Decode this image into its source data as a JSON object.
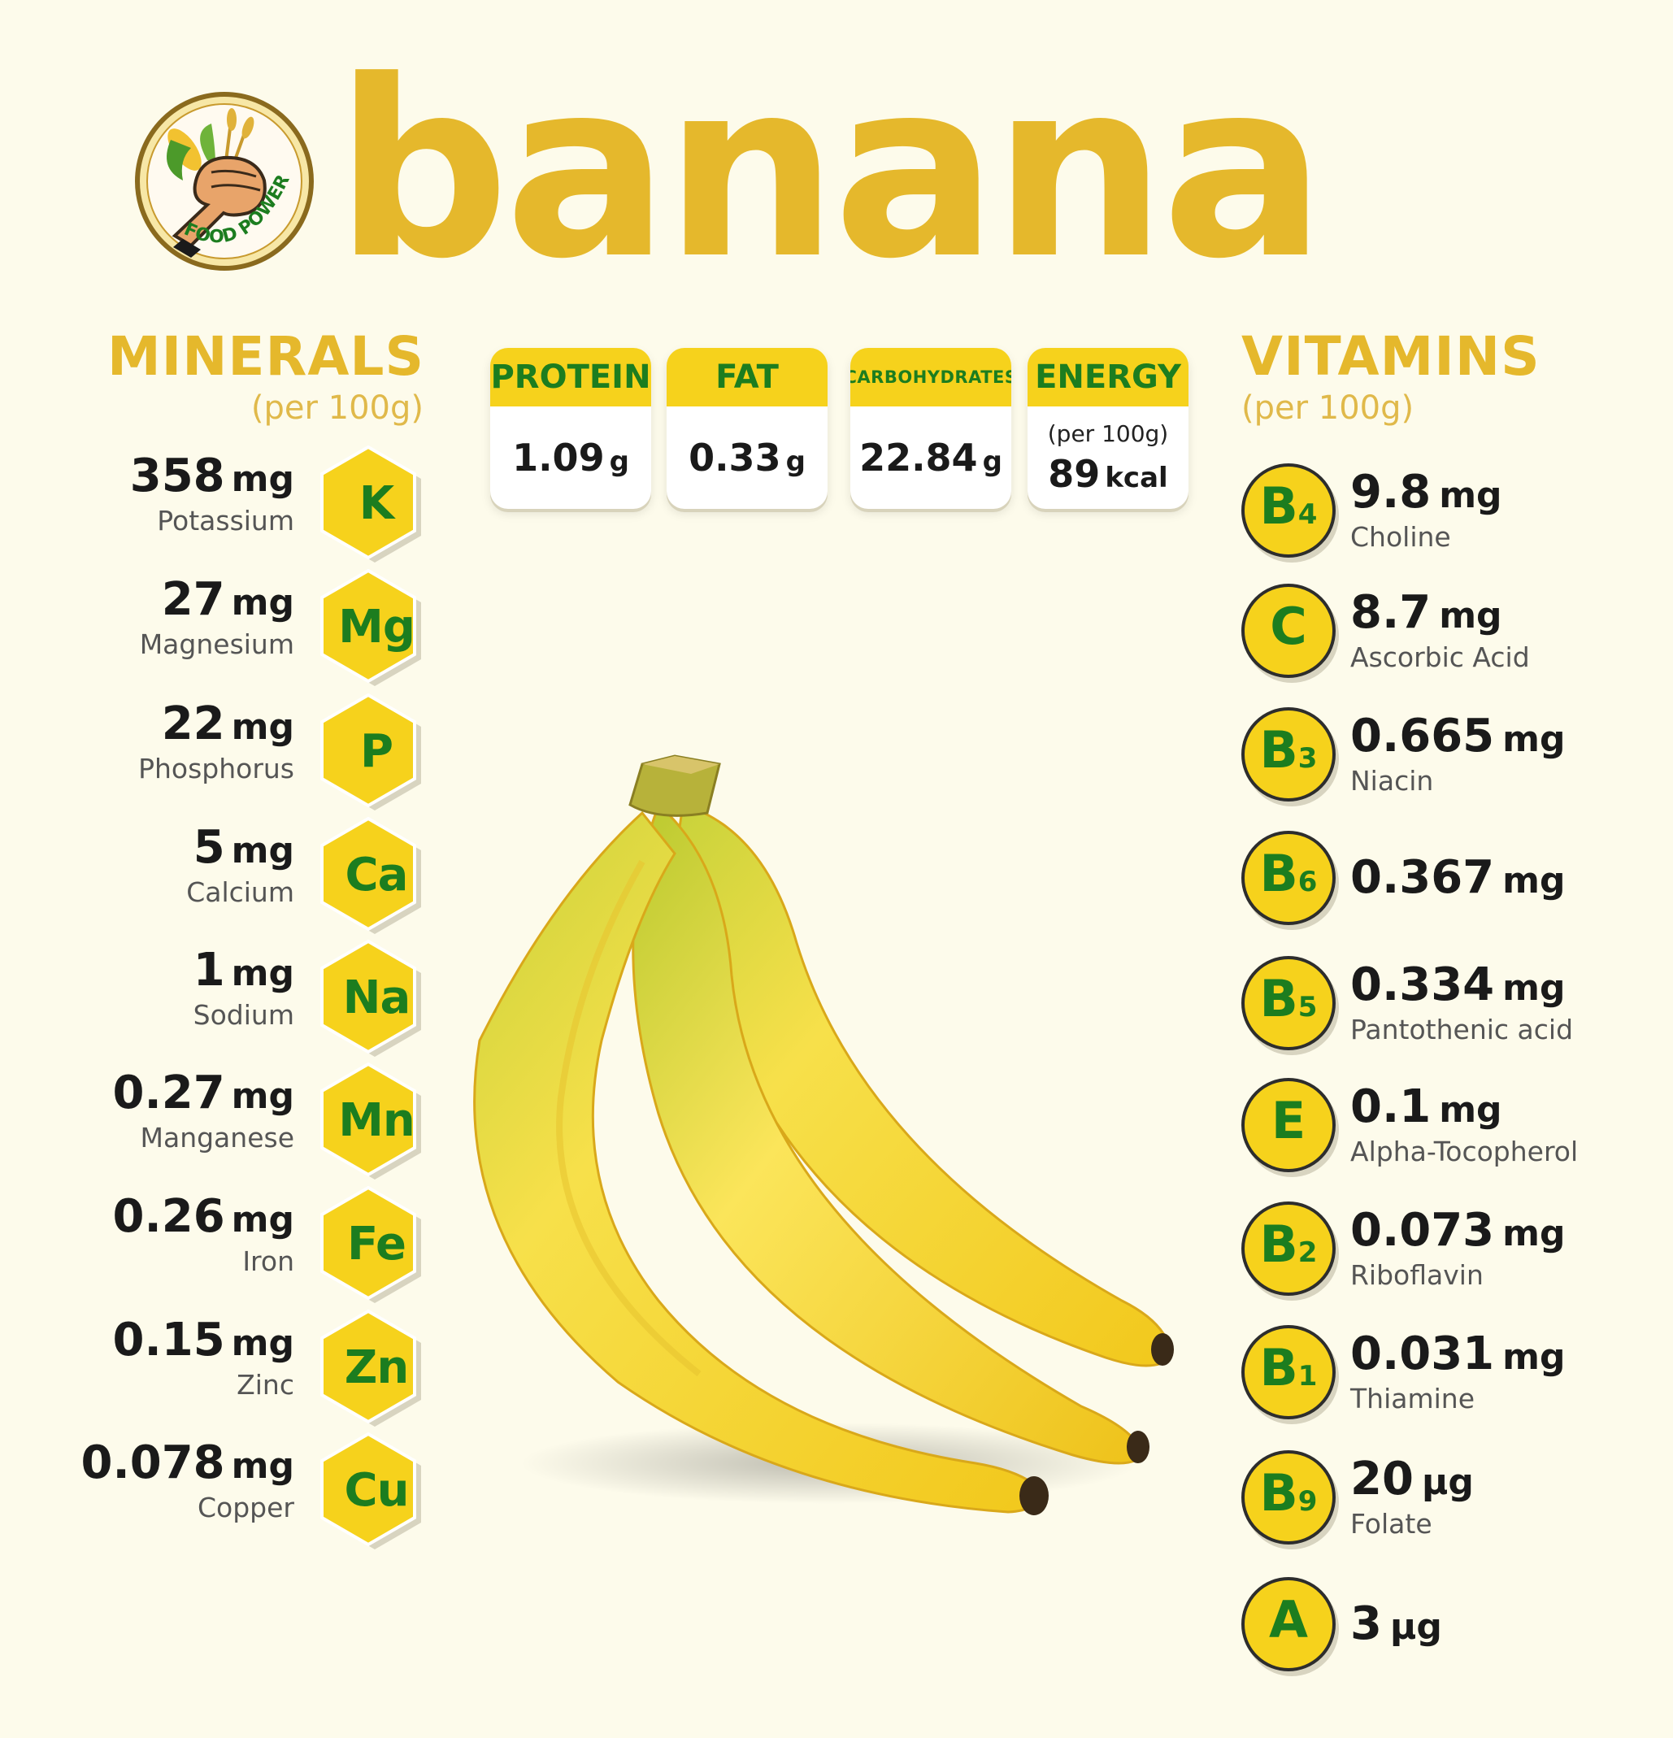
{
  "header": {
    "title": "banana",
    "logo": {
      "icon": "food-power-fist-icon",
      "text": "FOOD POWER"
    }
  },
  "minerals": {
    "title": "MINERALS",
    "subtitle": "(per 100g)",
    "items": [
      {
        "value": "358",
        "unit": "mg",
        "name": "Potassium",
        "symbol": "K"
      },
      {
        "value": "27",
        "unit": "mg",
        "name": "Magnesium",
        "symbol": "Mg"
      },
      {
        "value": "22",
        "unit": "mg",
        "name": "Phosphorus",
        "symbol": "P"
      },
      {
        "value": "5",
        "unit": "mg",
        "name": "Calcium",
        "symbol": "Ca"
      },
      {
        "value": "1",
        "unit": "mg",
        "name": "Sodium",
        "symbol": "Na"
      },
      {
        "value": "0.27",
        "unit": "mg",
        "name": "Manganese",
        "symbol": "Mn"
      },
      {
        "value": "0.26",
        "unit": "mg",
        "name": "Iron",
        "symbol": "Fe"
      },
      {
        "value": "0.15",
        "unit": "mg",
        "name": "Zinc",
        "symbol": "Zn"
      },
      {
        "value": "0.078",
        "unit": "mg",
        "name": "Copper",
        "symbol": "Cu"
      }
    ]
  },
  "macros": {
    "protein": {
      "label": "PROTEIN",
      "value": "1.09",
      "unit": "g"
    },
    "fat": {
      "label": "FAT",
      "value": "0.33",
      "unit": "g"
    },
    "carbs": {
      "label": "CARBOHYDRATES",
      "value": "22.84",
      "unit": "g"
    },
    "energy": {
      "label": "ENERGY",
      "sub": "(per 100g)",
      "value": "89",
      "unit": "kcal"
    }
  },
  "vitamins": {
    "title": "VITAMINS",
    "subtitle": "(per 100g)",
    "items": [
      {
        "letter": "B",
        "num": "4",
        "value": "9.8",
        "unit": "mg",
        "name": "Choline"
      },
      {
        "letter": "C",
        "num": "",
        "value": "8.7",
        "unit": "mg",
        "name": "Ascorbic Acid"
      },
      {
        "letter": "B",
        "num": "3",
        "value": "0.665",
        "unit": "mg",
        "name": "Niacin"
      },
      {
        "letter": "B",
        "num": "6",
        "value": "0.367",
        "unit": "mg",
        "name": ""
      },
      {
        "letter": "B",
        "num": "5",
        "value": "0.334",
        "unit": "mg",
        "name": "Pantothenic acid"
      },
      {
        "letter": "E",
        "num": "",
        "value": "0.1",
        "unit": "mg",
        "name": "Alpha-Tocopherol"
      },
      {
        "letter": "B",
        "num": "2",
        "value": "0.073",
        "unit": "mg",
        "name": "Riboflavin"
      },
      {
        "letter": "B",
        "num": "1",
        "value": "0.031",
        "unit": "mg",
        "name": "Thiamine"
      },
      {
        "letter": "B",
        "num": "9",
        "value": "20",
        "unit": "µg",
        "name": "Folate"
      },
      {
        "letter": "A",
        "num": "",
        "value": "3",
        "unit": "µg",
        "name": ""
      }
    ]
  },
  "image": {
    "icon": "banana-bunch-illustration"
  },
  "colors": {
    "accent": "#e5b82c",
    "badge": "#f6d21c",
    "symbol": "#1c7d1f",
    "background": "#fdfbeb"
  }
}
